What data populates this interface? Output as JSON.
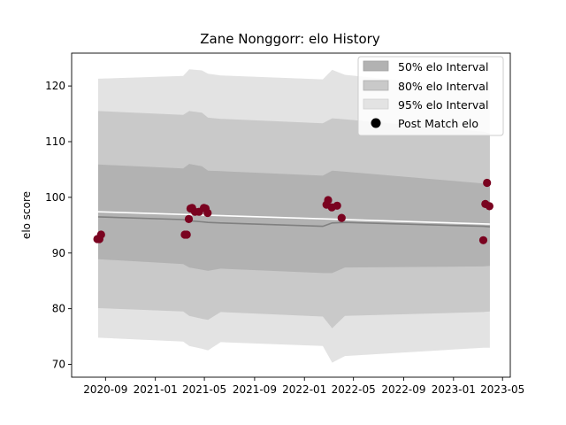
{
  "chart_data": {
    "type": "line",
    "title": "Zane Nonggorr: elo History",
    "xlabel": "",
    "ylabel": "elo score",
    "xlim": [
      "2020-06-10",
      "2023-05-20"
    ],
    "ylim": [
      67.7,
      125.9
    ],
    "x_ticks": [
      "2020-09",
      "2021-01",
      "2021-05",
      "2021-09",
      "2022-01",
      "2022-05",
      "2022-09",
      "2023-01",
      "2023-05"
    ],
    "y_ticks": [
      70,
      80,
      90,
      100,
      110,
      120
    ],
    "legend": {
      "position": "top-right",
      "entries": [
        "50% elo Interval",
        "80% elo Interval",
        "95% elo Interval",
        "Post Match elo"
      ]
    },
    "colors": {
      "band_50": "#b2b2b2",
      "band_80": "#c9c9c9",
      "band_95": "#e3e3e3",
      "mean_line": "#808080",
      "trend_line": "#ffffff",
      "points": "#7a0320"
    },
    "bands": [
      {
        "x": "2020-08-14",
        "mean": 96.5,
        "p50": [
          88.9,
          105.9
        ],
        "p80": [
          80.1,
          115.5
        ],
        "p95": [
          74.8,
          121.3
        ]
      },
      {
        "x": "2021-03-10",
        "mean": 96.0,
        "p50": [
          88.0,
          105.2
        ],
        "p80": [
          79.5,
          114.8
        ],
        "p95": [
          74.1,
          121.8
        ]
      },
      {
        "x": "2021-03-25",
        "mean": 95.8,
        "p50": [
          87.4,
          106.0
        ],
        "p80": [
          78.7,
          115.5
        ],
        "p95": [
          73.3,
          123.0
        ]
      },
      {
        "x": "2021-04-25",
        "mean": 95.6,
        "p50": [
          87.0,
          105.6
        ],
        "p80": [
          78.2,
          115.2
        ],
        "p95": [
          72.8,
          122.8
        ]
      },
      {
        "x": "2021-05-10",
        "mean": 95.5,
        "p50": [
          86.8,
          104.8
        ],
        "p80": [
          78.0,
          114.3
        ],
        "p95": [
          72.5,
          122.2
        ]
      },
      {
        "x": "2021-06-10",
        "mean": 95.4,
        "p50": [
          87.2,
          104.7
        ],
        "p80": [
          79.4,
          114.1
        ],
        "p95": [
          74.0,
          121.9
        ]
      },
      {
        "x": "2022-02-15",
        "mean": 94.8,
        "p50": [
          86.4,
          103.9
        ],
        "p80": [
          78.6,
          113.3
        ],
        "p95": [
          73.3,
          121.2
        ]
      },
      {
        "x": "2022-03-10",
        "mean": 95.4,
        "p50": [
          86.4,
          104.8
        ],
        "p80": [
          76.5,
          114.2
        ],
        "p95": [
          70.3,
          122.9
        ]
      },
      {
        "x": "2022-04-10",
        "mean": 95.5,
        "p50": [
          87.4,
          104.6
        ],
        "p80": [
          78.7,
          114.0
        ],
        "p95": [
          71.5,
          122.0
        ]
      },
      {
        "x": "2023-03-15",
        "mean": 94.8,
        "p50": [
          87.6,
          102.5
        ],
        "p80": [
          79.4,
          111.8
        ],
        "p95": [
          73.0,
          119.5
        ]
      },
      {
        "x": "2023-03-31",
        "mean": 94.7,
        "p50": [
          87.7,
          102.3
        ],
        "p80": [
          79.5,
          111.5
        ],
        "p95": [
          73.0,
          119.4
        ]
      }
    ],
    "trend": [
      {
        "x": "2020-08-14",
        "y": 97.4
      },
      {
        "x": "2023-03-31",
        "y": 95.2
      }
    ],
    "points": [
      {
        "x": "2020-08-12",
        "y": 92.5
      },
      {
        "x": "2020-08-17",
        "y": 92.5
      },
      {
        "x": "2020-08-21",
        "y": 93.3
      },
      {
        "x": "2021-03-14",
        "y": 93.3
      },
      {
        "x": "2021-03-19",
        "y": 93.3
      },
      {
        "x": "2021-03-24",
        "y": 96.1
      },
      {
        "x": "2021-03-28",
        "y": 98.0
      },
      {
        "x": "2021-04-01",
        "y": 98.1
      },
      {
        "x": "2021-04-08",
        "y": 97.4
      },
      {
        "x": "2021-04-18",
        "y": 97.4
      },
      {
        "x": "2021-04-30",
        "y": 98.1
      },
      {
        "x": "2021-05-04",
        "y": 98.0
      },
      {
        "x": "2021-05-09",
        "y": 97.2
      },
      {
        "x": "2022-02-24",
        "y": 98.7
      },
      {
        "x": "2022-02-28",
        "y": 99.5
      },
      {
        "x": "2022-03-09",
        "y": 98.2
      },
      {
        "x": "2022-03-22",
        "y": 98.5
      },
      {
        "x": "2022-04-02",
        "y": 96.3
      },
      {
        "x": "2023-03-15",
        "y": 92.3
      },
      {
        "x": "2023-03-20",
        "y": 98.8
      },
      {
        "x": "2023-03-24",
        "y": 102.6
      },
      {
        "x": "2023-03-30",
        "y": 98.4
      }
    ]
  }
}
